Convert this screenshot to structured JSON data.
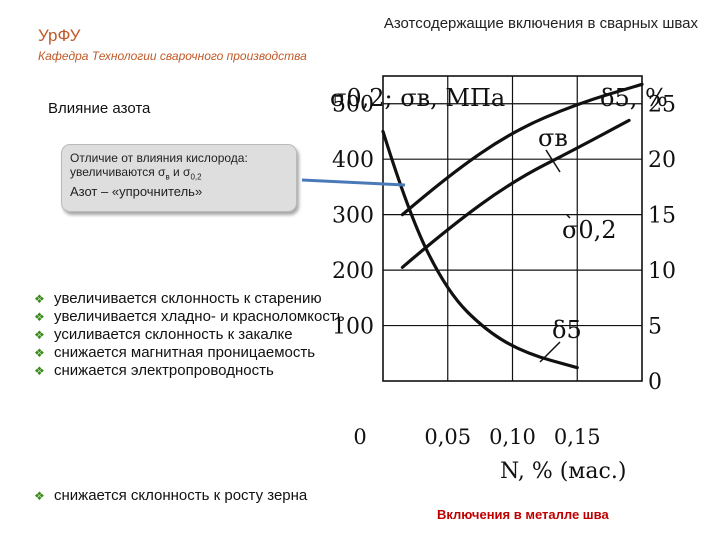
{
  "header": {
    "university": "УрФУ",
    "department": "Кафедра Технологии сварочного производства",
    "slide_title": "Азотсодержащие включения в сварных швах"
  },
  "section_title": "Влияние азота",
  "callout": {
    "line1": "Отличие от влияния кислорода:",
    "line2_prefix": "увеличиваются σ",
    "line2_sub1": "в",
    "line2_mid": " и σ",
    "line2_sub2": "0,2",
    "line3": "Азот – «упрочнитель»"
  },
  "bullets": [
    "увеличивается склонность к старению",
    "увеличивается хладно- и красноломкость",
    "усиливается склонность к закалке",
    "снижается магнитная проницаемость",
    "снижается электропроводность"
  ],
  "bullet_last": "снижается склонность к росту зерна",
  "figure_caption": "Включения в металле шва",
  "colors": {
    "header": "#c05a28",
    "bullet_marker": "#3a8a1c",
    "caption": "#c00000",
    "callout_bg": "#dedede"
  },
  "chart_data": {
    "type": "line",
    "title_left": "σ0,2; σв, МПа",
    "title_right": "δ5, %",
    "xlabel": "N, % (мас.)",
    "x_ticks": [
      "0",
      "0,05",
      "0,10",
      "0,15"
    ],
    "y_left_ticks": [
      "100",
      "200",
      "300",
      "400",
      "500"
    ],
    "y_right_ticks": [
      "0",
      "5",
      "10",
      "15",
      "20",
      "25"
    ],
    "xlim": [
      0,
      0.2
    ],
    "ylim_left": [
      0,
      550
    ],
    "ylim_right": [
      0,
      27.5
    ],
    "series": [
      {
        "name": "σв",
        "axis": "left",
        "x": [
          0.015,
          0.05,
          0.1,
          0.15,
          0.2
        ],
        "y": [
          300,
          370,
          450,
          500,
          535
        ]
      },
      {
        "name": "σ0,2",
        "axis": "left",
        "x": [
          0.015,
          0.05,
          0.1,
          0.15,
          0.19
        ],
        "y": [
          205,
          275,
          360,
          420,
          470
        ]
      },
      {
        "name": "δ5",
        "axis": "right",
        "x": [
          0.0,
          0.02,
          0.05,
          0.08,
          0.11,
          0.15
        ],
        "y": [
          22.5,
          15,
          8,
          4.5,
          2.5,
          1.2
        ]
      }
    ]
  }
}
